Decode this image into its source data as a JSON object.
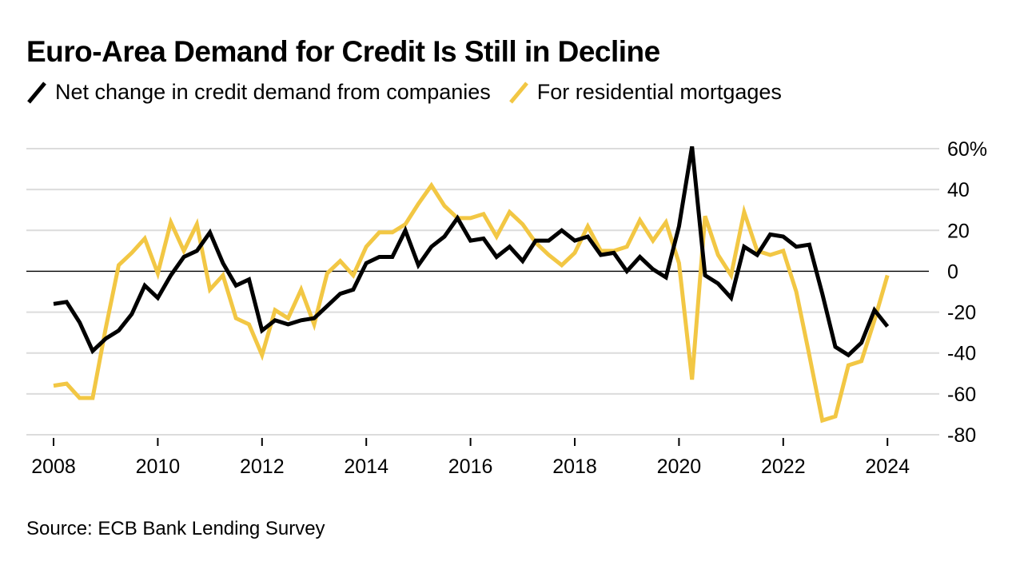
{
  "chart_data": {
    "type": "line",
    "title": "Euro-Area Demand for Credit Is Still in Decline",
    "source": "Source: ECB Bank Lending Survey",
    "ylim": [
      -80,
      60
    ],
    "yticks": [
      60,
      40,
      20,
      0,
      -20,
      -40,
      -60,
      -80
    ],
    "ytick_labels": [
      "60%",
      "40",
      "20",
      "0",
      "-20",
      "-40",
      "-60",
      "-80"
    ],
    "xlim": [
      2008,
      2025
    ],
    "xticks": [
      2008,
      2010,
      2012,
      2014,
      2016,
      2018,
      2020,
      2022,
      2024
    ],
    "xtick_labels": [
      "2008",
      "2010",
      "2012",
      "2014",
      "2016",
      "2018",
      "2020",
      "2022",
      "2024"
    ],
    "grid": true,
    "legend_position": "top-left",
    "series": [
      {
        "name": "Net change in credit demand from companies",
        "color": "#000000",
        "points": [
          [
            2008.0,
            -16
          ],
          [
            2008.25,
            -15
          ],
          [
            2008.5,
            -25
          ],
          [
            2008.75,
            -39
          ],
          [
            2009.0,
            -33
          ],
          [
            2009.25,
            -29
          ],
          [
            2009.5,
            -21
          ],
          [
            2009.75,
            -7
          ],
          [
            2010.0,
            -13
          ],
          [
            2010.25,
            -2
          ],
          [
            2010.5,
            7
          ],
          [
            2010.75,
            10
          ],
          [
            2011.0,
            19
          ],
          [
            2011.25,
            4
          ],
          [
            2011.5,
            -7
          ],
          [
            2011.75,
            -4
          ],
          [
            2012.0,
            -29
          ],
          [
            2012.25,
            -24
          ],
          [
            2012.5,
            -26
          ],
          [
            2012.75,
            -24
          ],
          [
            2013.0,
            -23
          ],
          [
            2013.25,
            -17
          ],
          [
            2013.5,
            -11
          ],
          [
            2013.75,
            -9
          ],
          [
            2014.0,
            4
          ],
          [
            2014.25,
            7
          ],
          [
            2014.5,
            7
          ],
          [
            2014.75,
            20
          ],
          [
            2015.0,
            3
          ],
          [
            2015.25,
            12
          ],
          [
            2015.5,
            17
          ],
          [
            2015.75,
            26
          ],
          [
            2016.0,
            15
          ],
          [
            2016.25,
            16
          ],
          [
            2016.5,
            7
          ],
          [
            2016.75,
            12
          ],
          [
            2017.0,
            5
          ],
          [
            2017.25,
            15
          ],
          [
            2017.5,
            15
          ],
          [
            2017.75,
            20
          ],
          [
            2018.0,
            15
          ],
          [
            2018.25,
            17
          ],
          [
            2018.5,
            8
          ],
          [
            2018.75,
            9
          ],
          [
            2019.0,
            0
          ],
          [
            2019.25,
            7
          ],
          [
            2019.5,
            1
          ],
          [
            2019.75,
            -3
          ],
          [
            2020.0,
            22
          ],
          [
            2020.25,
            61
          ],
          [
            2020.5,
            -2
          ],
          [
            2020.75,
            -6
          ],
          [
            2021.0,
            -13
          ],
          [
            2021.25,
            12
          ],
          [
            2021.5,
            8
          ],
          [
            2021.75,
            18
          ],
          [
            2022.0,
            17
          ],
          [
            2022.25,
            12
          ],
          [
            2022.5,
            13
          ],
          [
            2022.75,
            -11
          ],
          [
            2023.0,
            -37
          ],
          [
            2023.25,
            -41
          ],
          [
            2023.5,
            -35
          ],
          [
            2023.75,
            -19
          ],
          [
            2024.0,
            -27
          ]
        ]
      },
      {
        "name": "For residential mortgages",
        "color": "#F2C744",
        "points": [
          [
            2008.0,
            -56
          ],
          [
            2008.25,
            -55
          ],
          [
            2008.5,
            -62
          ],
          [
            2008.75,
            -62
          ],
          [
            2009.0,
            -28
          ],
          [
            2009.25,
            3
          ],
          [
            2009.5,
            9
          ],
          [
            2009.75,
            16
          ],
          [
            2010.0,
            -1
          ],
          [
            2010.25,
            24
          ],
          [
            2010.5,
            10
          ],
          [
            2010.75,
            23
          ],
          [
            2011.0,
            -9
          ],
          [
            2011.25,
            -2
          ],
          [
            2011.5,
            -23
          ],
          [
            2011.75,
            -26
          ],
          [
            2012.0,
            -41
          ],
          [
            2012.25,
            -19
          ],
          [
            2012.5,
            -23
          ],
          [
            2012.75,
            -9
          ],
          [
            2013.0,
            -26
          ],
          [
            2013.25,
            -1
          ],
          [
            2013.5,
            5
          ],
          [
            2013.75,
            -2
          ],
          [
            2014.0,
            12
          ],
          [
            2014.25,
            19
          ],
          [
            2014.5,
            19
          ],
          [
            2014.75,
            23
          ],
          [
            2015.0,
            33
          ],
          [
            2015.25,
            42
          ],
          [
            2015.5,
            32
          ],
          [
            2015.75,
            26
          ],
          [
            2016.0,
            26
          ],
          [
            2016.25,
            28
          ],
          [
            2016.5,
            17
          ],
          [
            2016.75,
            29
          ],
          [
            2017.0,
            23
          ],
          [
            2017.25,
            14
          ],
          [
            2017.5,
            8
          ],
          [
            2017.75,
            3
          ],
          [
            2018.0,
            9
          ],
          [
            2018.25,
            22
          ],
          [
            2018.5,
            10
          ],
          [
            2018.75,
            10
          ],
          [
            2019.0,
            12
          ],
          [
            2019.25,
            25
          ],
          [
            2019.5,
            15
          ],
          [
            2019.75,
            24
          ],
          [
            2020.0,
            4
          ],
          [
            2020.25,
            -53
          ],
          [
            2020.5,
            27
          ],
          [
            2020.75,
            8
          ],
          [
            2021.0,
            -2
          ],
          [
            2021.25,
            29
          ],
          [
            2021.5,
            10
          ],
          [
            2021.75,
            8
          ],
          [
            2022.0,
            10
          ],
          [
            2022.25,
            -10
          ],
          [
            2022.5,
            -41
          ],
          [
            2022.75,
            -73
          ],
          [
            2023.0,
            -71
          ],
          [
            2023.25,
            -46
          ],
          [
            2023.5,
            -44
          ],
          [
            2023.75,
            -24
          ],
          [
            2024.0,
            -2
          ]
        ]
      }
    ]
  }
}
